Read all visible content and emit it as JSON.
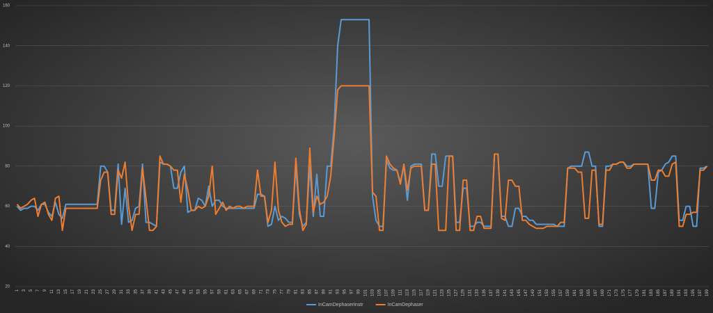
{
  "chart_data": {
    "type": "line",
    "categories": [
      1,
      null,
      3,
      null,
      5,
      null,
      7,
      null,
      9,
      null,
      11,
      null,
      13,
      null,
      15,
      null,
      17,
      null,
      19,
      null,
      21,
      null,
      23,
      null,
      25,
      null,
      27,
      null,
      29,
      null,
      31,
      null,
      33,
      null,
      35,
      null,
      37,
      null,
      39,
      null,
      41,
      null,
      43,
      null,
      45,
      null,
      47,
      null,
      49,
      null,
      51,
      null,
      53,
      null,
      55,
      null,
      57,
      null,
      59,
      null,
      61,
      null,
      63,
      null,
      65,
      null,
      67,
      null,
      69,
      null,
      71,
      null,
      73,
      null,
      75,
      null,
      77,
      null,
      79,
      null,
      81,
      null,
      83,
      null,
      85,
      null,
      87,
      null,
      89,
      null,
      91,
      null,
      93,
      null,
      95,
      null,
      97,
      null,
      99,
      null,
      101,
      null,
      103,
      null,
      105,
      null,
      107,
      null,
      109,
      null,
      111,
      null,
      113,
      null,
      115,
      null,
      117,
      null,
      119,
      null,
      121,
      null,
      123,
      null,
      125,
      null,
      127,
      null,
      129,
      null,
      131,
      null,
      133,
      null,
      135,
      null,
      137,
      null,
      139,
      null,
      141,
      null,
      143,
      null,
      145,
      null,
      147,
      null,
      149,
      null,
      151,
      null,
      153,
      null,
      155,
      null,
      157,
      null,
      159,
      null,
      161,
      null,
      163,
      null,
      165,
      null,
      167,
      null,
      169,
      null,
      171,
      null,
      173,
      null,
      175,
      null,
      177,
      null,
      179,
      null,
      181,
      null,
      183,
      null,
      185,
      null,
      187,
      null,
      189,
      null,
      191,
      null,
      193,
      null,
      195,
      null,
      197,
      null,
      199
    ],
    "series": [
      {
        "name": "InCamDephaserInstr",
        "color": "#5b9bd5",
        "values": [
          60,
          58,
          59,
          59,
          60,
          60,
          58,
          61,
          61,
          57,
          55,
          62,
          56,
          54,
          61,
          61,
          61,
          61,
          61,
          61,
          61,
          61,
          61,
          61,
          80,
          80,
          77,
          58,
          58,
          81,
          51,
          69,
          52,
          53,
          59,
          60,
          81,
          52,
          52,
          51,
          50,
          82,
          81,
          81,
          80,
          69,
          69,
          77,
          80,
          57,
          58,
          58,
          64,
          63,
          60,
          70,
          60,
          63,
          63,
          60,
          59,
          59,
          59,
          59,
          59,
          59,
          59,
          59,
          59,
          66,
          66,
          65,
          50,
          51,
          60,
          53,
          55,
          54,
          52,
          52,
          80,
          56,
          50,
          52,
          80,
          55,
          76,
          55,
          55,
          80,
          80,
          100,
          140,
          153,
          153,
          153,
          153,
          153,
          153,
          153,
          153,
          153,
          65,
          53,
          50,
          50,
          83,
          79,
          78,
          78,
          72,
          80,
          63,
          80,
          81,
          81,
          81,
          58,
          58,
          86,
          86,
          70,
          70,
          85,
          85,
          85,
          52,
          52,
          69,
          69,
          50,
          50,
          52,
          52,
          50,
          50,
          50,
          86,
          86,
          55,
          55,
          50,
          50,
          59,
          59,
          55,
          55,
          53,
          53,
          51,
          51,
          51,
          51,
          51,
          51,
          50,
          50,
          50,
          79,
          80,
          80,
          80,
          80,
          87,
          87,
          80,
          80,
          50,
          50,
          80,
          80,
          81,
          81,
          82,
          82,
          80,
          80,
          81,
          81,
          81,
          81,
          81,
          59,
          59,
          77,
          78,
          81,
          82,
          85,
          85,
          53,
          53,
          60,
          60,
          50,
          50,
          79,
          79,
          80
        ]
      },
      {
        "name": "InCamDephaser",
        "color": "#ed7d31",
        "values": [
          61,
          59,
          60,
          61,
          63,
          64,
          55,
          61,
          62,
          56,
          53,
          64,
          65,
          48,
          59,
          59,
          59,
          59,
          59,
          59,
          59,
          59,
          59,
          59,
          73,
          77,
          77,
          56,
          56,
          78,
          74,
          82,
          60,
          48,
          56,
          56,
          79,
          64,
          48,
          48,
          50,
          85,
          81,
          81,
          80,
          78,
          78,
          62,
          76,
          68,
          58,
          58,
          60,
          59,
          60,
          65,
          80,
          56,
          59,
          62,
          58,
          60,
          59,
          60,
          60,
          59,
          60,
          60,
          60,
          78,
          65,
          65,
          52,
          58,
          82,
          58,
          52,
          50,
          51,
          51,
          84,
          59,
          48,
          51,
          89,
          57,
          65,
          61,
          62,
          65,
          75,
          95,
          118,
          120,
          120,
          120,
          120,
          120,
          120,
          120,
          120,
          120,
          67,
          65,
          48,
          48,
          85,
          81,
          79,
          78,
          71,
          81,
          68,
          79,
          80,
          80,
          80,
          58,
          58,
          81,
          81,
          48,
          48,
          48,
          85,
          85,
          48,
          48,
          73,
          73,
          48,
          48,
          55,
          55,
          49,
          49,
          49,
          86,
          86,
          54,
          53,
          73,
          73,
          70,
          70,
          53,
          53,
          51,
          50,
          49,
          49,
          49,
          50,
          50,
          50,
          50,
          52,
          52,
          79,
          79,
          79,
          77,
          77,
          54,
          54,
          78,
          78,
          51,
          51,
          78,
          78,
          81,
          81,
          82,
          82,
          79,
          79,
          81,
          81,
          81,
          81,
          81,
          73,
          73,
          78,
          78,
          75,
          75,
          81,
          82,
          50,
          50,
          56,
          56,
          57,
          57,
          78,
          78,
          80
        ]
      }
    ],
    "ylim": [
      20,
      160
    ],
    "yticks": [
      20,
      40,
      60,
      80,
      100,
      120,
      140,
      160
    ],
    "grid": true,
    "legend": "bottom"
  }
}
